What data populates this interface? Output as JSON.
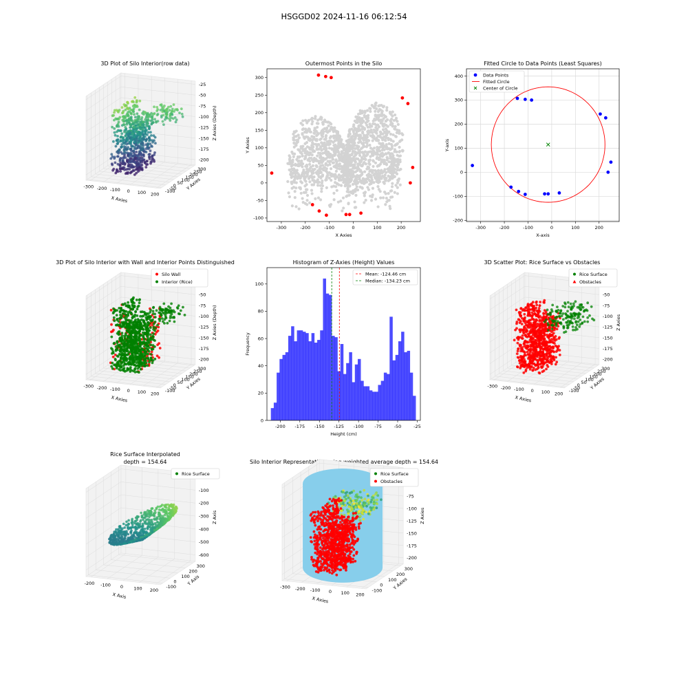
{
  "figure": {
    "title": "HSGGD02 2024-11-16 06:12:54"
  },
  "chart_data": [
    {
      "id": "p1",
      "type": "scatter3d",
      "title": "3D Plot of Silo Interior(row data)",
      "xlabel": "X Axies",
      "ylabel": "Y Axies",
      "zlabel": "Z Axies (Depth)",
      "xticks": [
        -300,
        -200,
        -100,
        0,
        100,
        200
      ],
      "yticks": [
        -100,
        -50,
        0,
        50,
        100,
        150,
        200,
        250,
        300
      ],
      "zticks": [
        -25,
        -50,
        -75,
        -100,
        -125,
        -150,
        -175,
        -200
      ],
      "colormap": "viridis"
    },
    {
      "id": "p2",
      "type": "scatter",
      "title": "Outermost Points in the Silo",
      "xlabel": "X Axies",
      "ylabel": "Y Axies",
      "xlim": [
        -360,
        280
      ],
      "ylim": [
        -110,
        325
      ],
      "xticks": [
        -300,
        -200,
        -100,
        0,
        100,
        200
      ],
      "yticks": [
        -100,
        -50,
        0,
        50,
        100,
        150,
        200,
        250,
        300
      ],
      "colors": {
        "all": "#d3d3d3",
        "outer": "#ff0000"
      },
      "outer_points": [
        [
          -340,
          28
        ],
        [
          -145,
          307
        ],
        [
          -115,
          303
        ],
        [
          -92,
          300
        ],
        [
          205,
          242
        ],
        [
          228,
          226
        ],
        [
          248,
          44
        ],
        [
          238,
          0
        ],
        [
          -170,
          -62
        ],
        [
          -142,
          -80
        ],
        [
          -112,
          -92
        ],
        [
          -30,
          -90
        ],
        [
          -15,
          -90
        ],
        [
          32,
          -86
        ]
      ]
    },
    {
      "id": "p3",
      "type": "scatter",
      "title": "Fitted Circle to Data Points (Least Squares)",
      "xlabel": "X-axis",
      "ylabel": "Y-axis",
      "xlim": [
        -360,
        285
      ],
      "ylim": [
        -205,
        430
      ],
      "xticks": [
        -300,
        -200,
        -100,
        0,
        100,
        200
      ],
      "yticks": [
        -200,
        -100,
        0,
        100,
        200,
        300,
        400
      ],
      "grid": true,
      "legend": "top-left",
      "series": [
        {
          "name": "Data Points",
          "marker": "circle",
          "color": "#0000ff",
          "points": [
            [
              -335,
              28
            ],
            [
              -145,
              307
            ],
            [
              -112,
              303
            ],
            [
              -85,
              300
            ],
            [
              205,
              242
            ],
            [
              228,
              226
            ],
            [
              250,
              42
            ],
            [
              238,
              0
            ],
            [
              -172,
              -62
            ],
            [
              -140,
              -80
            ],
            [
              -112,
              -92
            ],
            [
              -30,
              -90
            ],
            [
              -15,
              -90
            ],
            [
              32,
              -86
            ]
          ]
        },
        {
          "name": "Fitted Circle",
          "marker": "line",
          "color": "#ff0000",
          "center": [
            -15,
            115
          ],
          "radius": 240
        },
        {
          "name": "Center of Circle",
          "marker": "x",
          "color": "#008000",
          "points": [
            [
              -15,
              115
            ]
          ]
        }
      ]
    },
    {
      "id": "p4",
      "type": "scatter3d",
      "title": "3D Plot of Silo Interior with Wall and Interior Points Distinguished",
      "xlabel": "X Axies",
      "ylabel": "Y Axies",
      "zlabel": "Z Axies (Depth)",
      "xticks": [
        -300,
        -200,
        -100,
        0,
        100,
        200
      ],
      "yticks": [
        -100,
        -50,
        0,
        50,
        100,
        150,
        200,
        250,
        300
      ],
      "zticks": [
        -25,
        -50,
        -75,
        -100,
        -125,
        -150,
        -175,
        -200
      ],
      "legend": "top-right",
      "series": [
        {
          "name": "Silo Wall",
          "color": "#ff0000"
        },
        {
          "name": "Interior (Rice)",
          "color": "#008000"
        }
      ]
    },
    {
      "id": "p5",
      "type": "bar",
      "title": "Histogram of Z-Axies (Height) Values",
      "xlabel": "Height (cm)",
      "ylabel": "Frequency",
      "xlim": [
        -217,
        -21
      ],
      "ylim": [
        0,
        112
      ],
      "xticks": [
        -200,
        -175,
        -150,
        -125,
        -100,
        -75,
        -50,
        -25
      ],
      "yticks": [
        0,
        20,
        40,
        60,
        80,
        100
      ],
      "bin_start": -212,
      "bin_width": 3.7,
      "values": [
        9,
        13,
        35,
        45,
        48,
        50,
        62,
        69,
        58,
        66,
        66,
        65,
        64,
        58,
        64,
        57,
        59,
        66,
        104,
        93,
        92,
        62,
        61,
        36,
        56,
        34,
        42,
        50,
        28,
        41,
        45,
        29,
        25,
        25,
        22,
        21,
        21,
        26,
        29,
        35,
        34,
        76,
        44,
        48,
        58,
        65,
        50,
        51,
        35,
        18
      ],
      "bar_color": "#0000ff",
      "mean": -124.46,
      "median": -134.23,
      "legend": "top-right",
      "legend_entries": [
        "Mean: -124.46 cm",
        "Median: -134.23 cm"
      ]
    },
    {
      "id": "p6",
      "type": "scatter3d",
      "title": "3D Scatter Plot: Rice Surface vs Obstacles",
      "xlabel": "X Axies",
      "ylabel": "Y Axies",
      "zlabel": "Z Axies",
      "xticks": [
        -300,
        -200,
        -100,
        0,
        100,
        200
      ],
      "yticks": [
        -100,
        -50,
        0,
        50,
        100,
        150,
        200,
        250,
        300
      ],
      "zticks": [
        -25,
        -50,
        -75,
        -100,
        -125,
        -150,
        -175,
        -200
      ],
      "legend": "top-right",
      "series": [
        {
          "name": "Rice Surface",
          "color": "#008000"
        },
        {
          "name": "Obstacles",
          "color": "#ff0000"
        }
      ]
    },
    {
      "id": "p7",
      "type": "surface3d",
      "title": "Rice Surface Interpolated",
      "subtitle": "depth = 154.64",
      "xlabel": "X Axis",
      "ylabel": "Y Axis",
      "zlabel": "Z Axis",
      "xticks": [
        -200,
        -100,
        0,
        100,
        200
      ],
      "yticks": [
        -100,
        0,
        100,
        200,
        300
      ],
      "zticks": [
        0,
        -100,
        -200,
        -300,
        -400,
        -500,
        -600
      ],
      "legend": "top-right",
      "series": [
        {
          "name": "Rice Surface",
          "color": "#008000"
        }
      ]
    },
    {
      "id": "p8",
      "type": "scatter3d",
      "title": "Silo Interior Representation using weighted average depth = 154.64",
      "xlabel": "X Axies",
      "ylabel": "Y Axies",
      "zlabel": "Z Axies",
      "xticks": [
        -300,
        -200,
        -100,
        0,
        100,
        200
      ],
      "yticks": [
        -100,
        0,
        100,
        200,
        300
      ],
      "zticks": [
        -25,
        -50,
        -75,
        -100,
        -125,
        -150,
        -175,
        -200
      ],
      "legend": "top-right",
      "series": [
        {
          "name": "Rice Surface",
          "color": "#008000"
        },
        {
          "name": "Obstacles",
          "color": "#ff0000"
        }
      ]
    }
  ]
}
